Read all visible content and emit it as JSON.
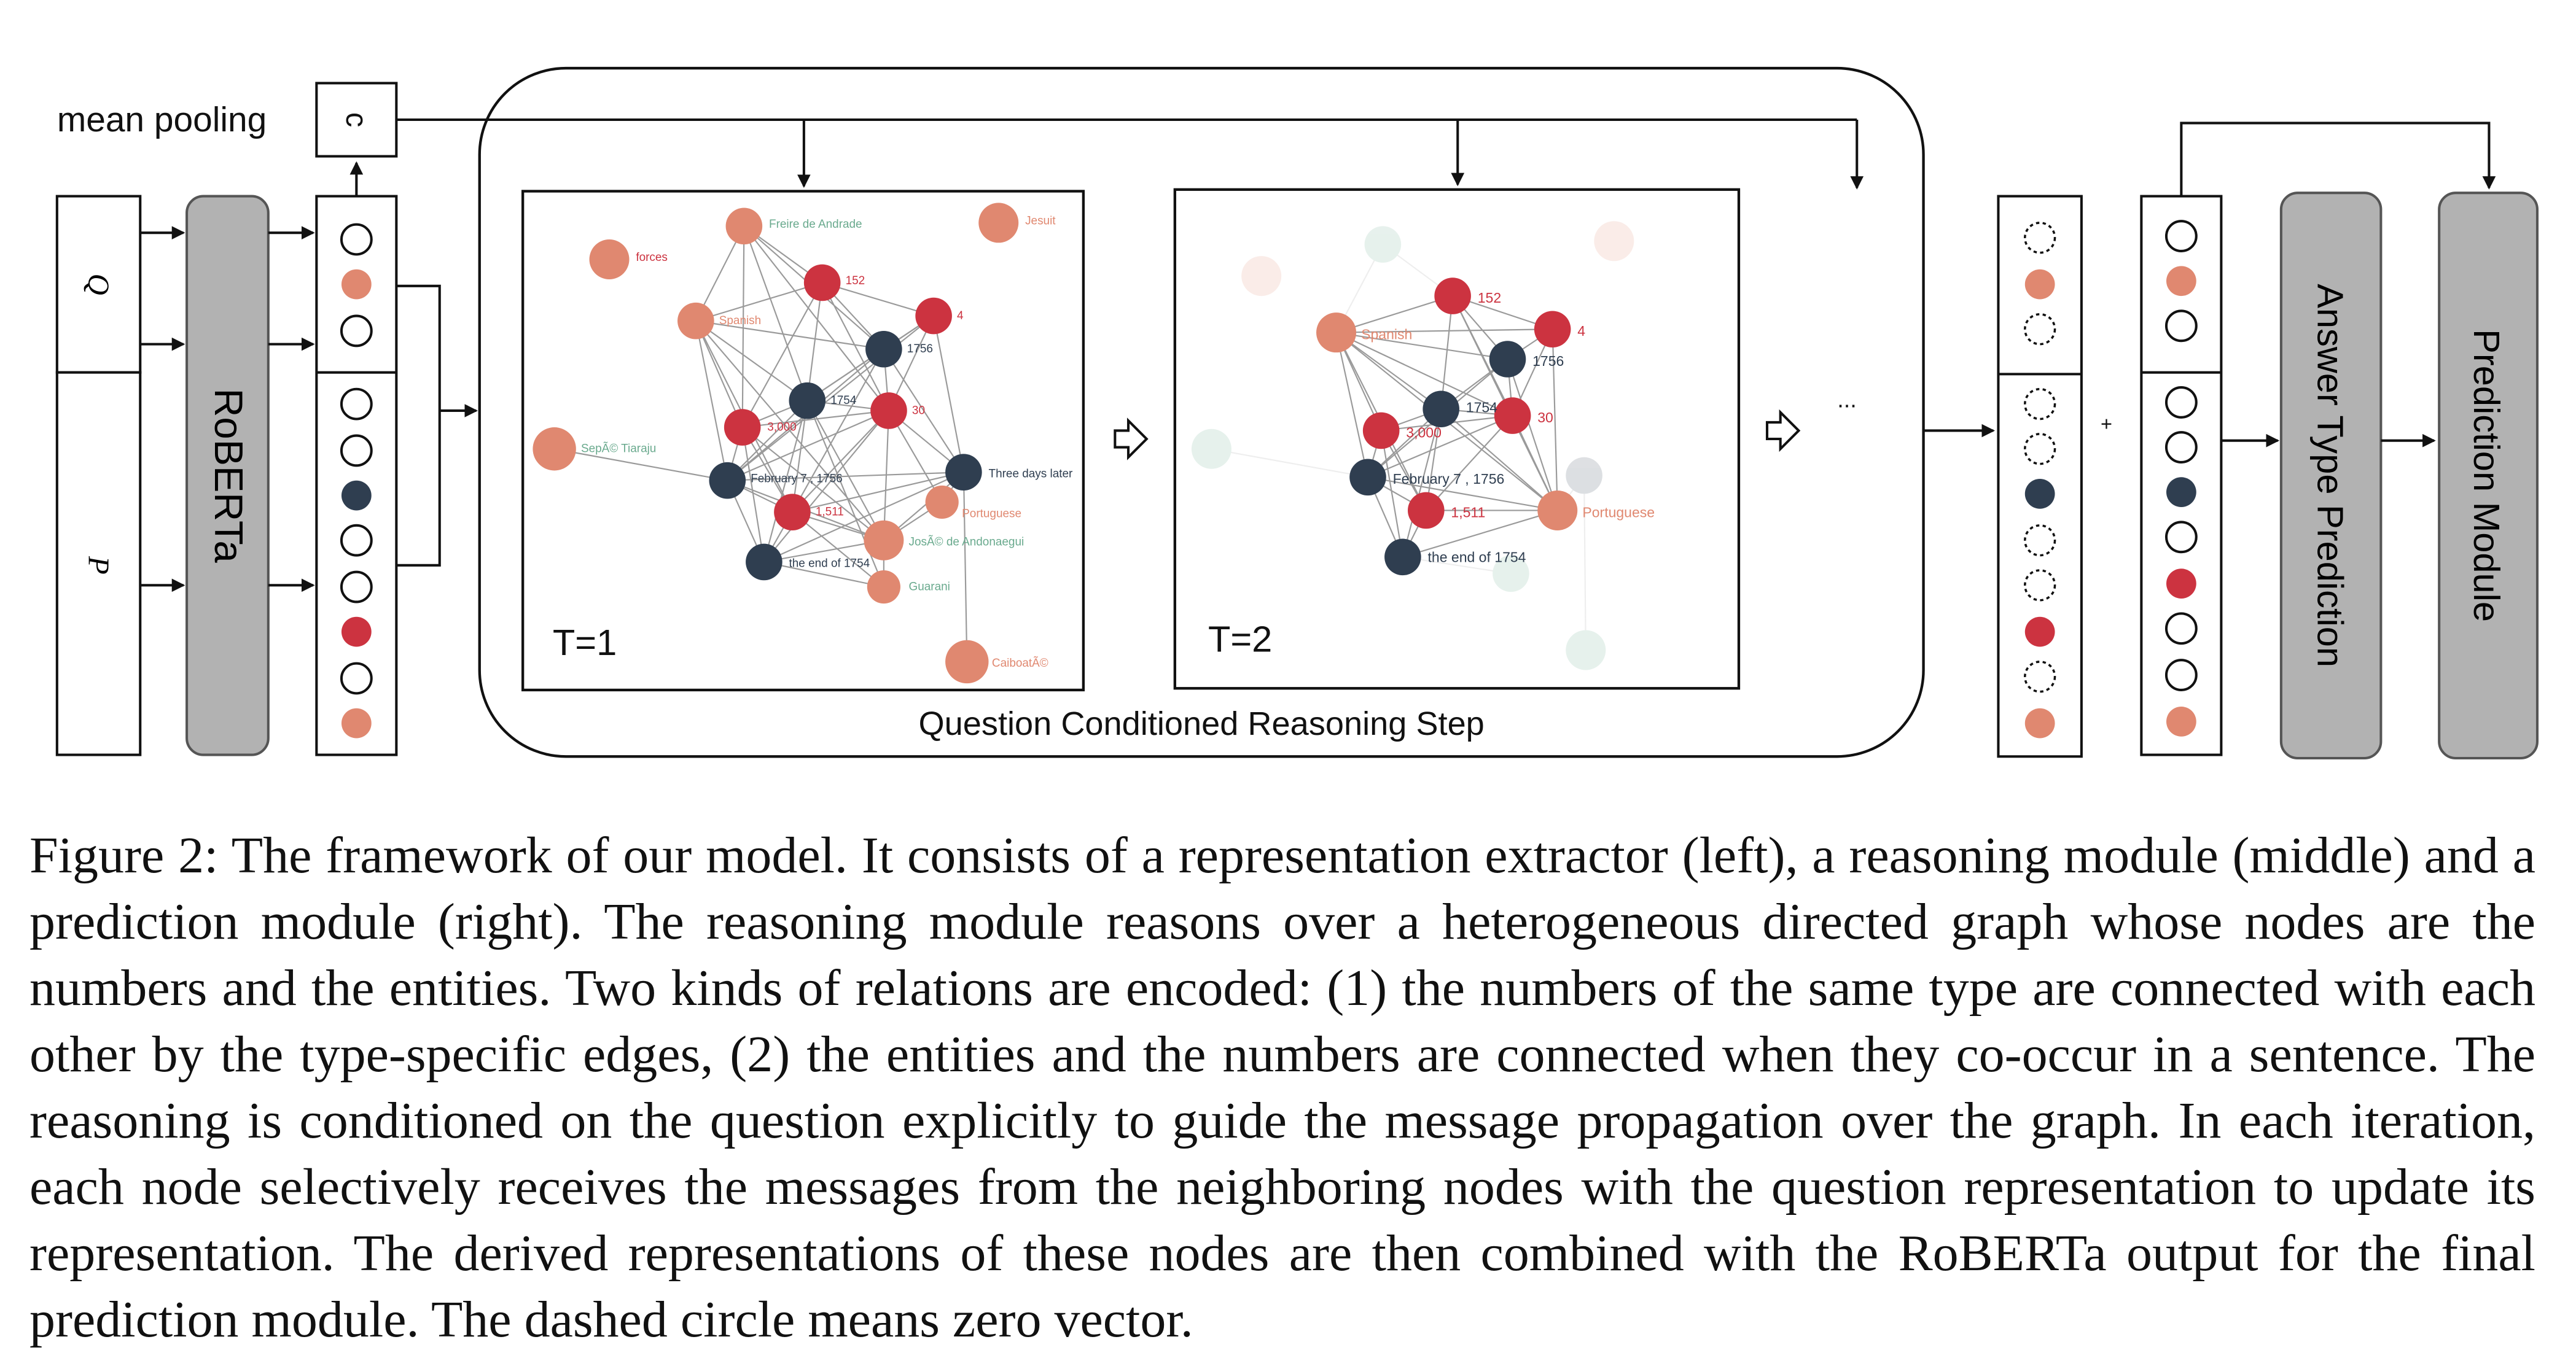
{
  "extractor": {
    "mean_pooling": "mean pooling",
    "c": "c",
    "q": "Q",
    "p": "P",
    "roberta": "RoBERTa"
  },
  "reasoning": {
    "title": "Question Conditioned Reasoning Step",
    "step1_label": "T=1",
    "step2_label": "T=2",
    "ellipsis": "..."
  },
  "graph_labels": {
    "freire": "Freire de Andrade",
    "jesuit": "Jesuit",
    "forces": "forces",
    "n152": "152",
    "n4": "4",
    "spanish": "Spanish",
    "n1756": "1756",
    "n1754": "1754",
    "n30": "30",
    "n3000": "3,000",
    "tiaraju": "SepÃ© Tiaraju",
    "feb": "February 7 , 1756",
    "three_days": "Three days later",
    "n1511": "1,511",
    "portuguese": "Portuguese",
    "andonaegui": "JosÃ© de Andonaegui",
    "end1754": "the end of 1754",
    "guarani": "Guarani",
    "caiboate": "CaiboatÃ©"
  },
  "prediction": {
    "plus": "+",
    "answer_type": "Answer Type Prediction",
    "prediction_module": "Prediction Module"
  },
  "colors": {
    "entity": "#e08870",
    "number_red": "#cc3340",
    "number_dark": "#2f3e50",
    "module_gray": "#b2b2b2",
    "entity_label": "#6aaa8e",
    "number_label": "#cc3340"
  },
  "caption": "Figure 2: The framework of our model. It consists of a representation extractor (left), a reasoning module (middle) and a prediction module (right). The reasoning module reasons over a heterogeneous directed graph whose nodes are the numbers and the entities. Two kinds of relations are encoded: (1) the numbers of the same type are connected with each other by the type-specific edges, (2) the entities and the numbers are connected when they co-occur in a sentence. The reasoning is conditioned on the question explicitly to guide the message propagation over the graph. In each iteration, each node selectively receives the messages from the neighboring nodes with the question representation to update its representation. The derived representations of these nodes are then combined with the RoBERTa output for the final prediction module. The dashed circle means zero vector."
}
